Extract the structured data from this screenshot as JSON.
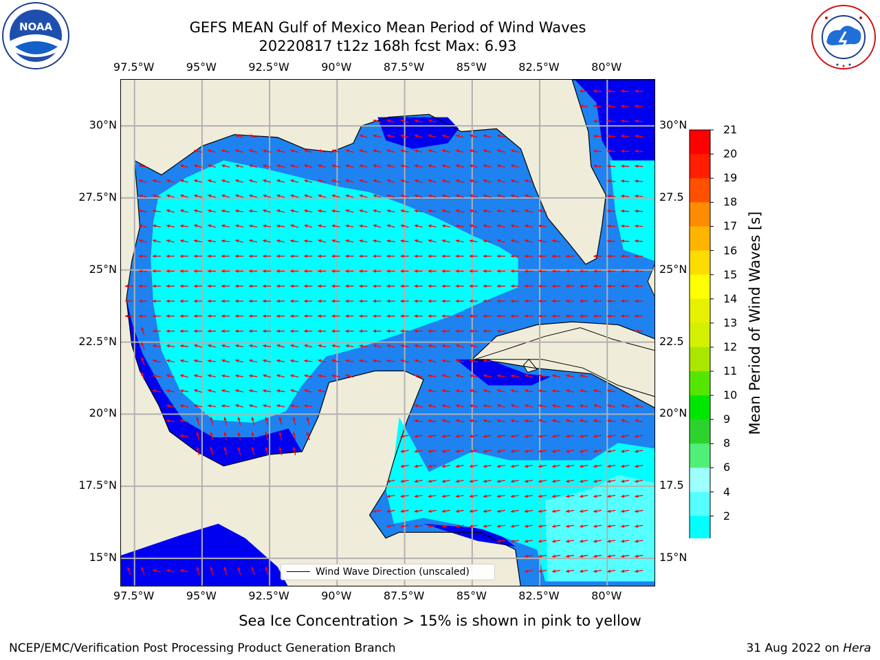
{
  "header": {
    "title": "GEFS MEAN Gulf of Mexico Mean Period of Wind Waves",
    "subtitle": "20220817 t12z 168h fcst   Max: 6.93"
  },
  "logos": {
    "left": {
      "name": "NOAA",
      "ring_text": "NATIONAL OCEANIC AND ATMOSPHERIC ADMINISTRATION",
      "bottom_text": "U.S. DEPARTMENT OF COMMERCE"
    },
    "right": {
      "name": "NATIONAL WEATHER SERVICE"
    }
  },
  "map": {
    "lon_labels": [
      "97.5°W",
      "95°W",
      "92.5°W",
      "90°W",
      "87.5°W",
      "85°W",
      "82.5°W",
      "80°W"
    ],
    "lat_labels_left": [
      "30°N",
      "27.5°N",
      "25°N",
      "22.5°N",
      "20°N",
      "17.5°N",
      "15°N"
    ],
    "lat_labels_right": [
      "30°N",
      "27.5",
      "25°N",
      "22.5",
      "20°N",
      "17.5",
      "15°N"
    ],
    "lon_range": [
      -98,
      -78.2
    ],
    "lat_range": [
      14,
      31.6
    ],
    "land_color": "#efedda",
    "ocean_colors": {
      "1_2": "#0000f0",
      "2_4": "#1e82f0",
      "4_6": "#00ffff",
      "6_8": "#55ffff"
    },
    "arrow_color": "#ff0000",
    "grid": true,
    "legend": {
      "label": "Wind Wave Direction (unscaled)",
      "placement": "bottom-center"
    }
  },
  "colorbar": {
    "label": "Mean Period of Wind Waves [s]",
    "ticks": [
      "2",
      "4",
      "6",
      "8",
      "9",
      "10",
      "11",
      "12",
      "13",
      "14",
      "15",
      "16",
      "17",
      "18",
      "19",
      "20",
      "21"
    ],
    "colors": [
      "#0000f0",
      "#1e82f0",
      "#00ffff",
      "#55ffff",
      "#9effff",
      "#50f078",
      "#2dd22d",
      "#00e600",
      "#55e600",
      "#aae600",
      "#d2f000",
      "#e6f000",
      "#ffff00",
      "#ffdc00",
      "#ffb400",
      "#ff8c00",
      "#ff5000",
      "#ff1e00",
      "#ff0000"
    ],
    "extend": "min"
  },
  "footer": {
    "note": "Sea Ice Concentration > 15% is shown in pink to yellow",
    "credit": "NCEP/EMC/Verification Post Processing Product Generation Branch",
    "date_prefix": "31 Aug 2022 on ",
    "machine": "Hera"
  }
}
